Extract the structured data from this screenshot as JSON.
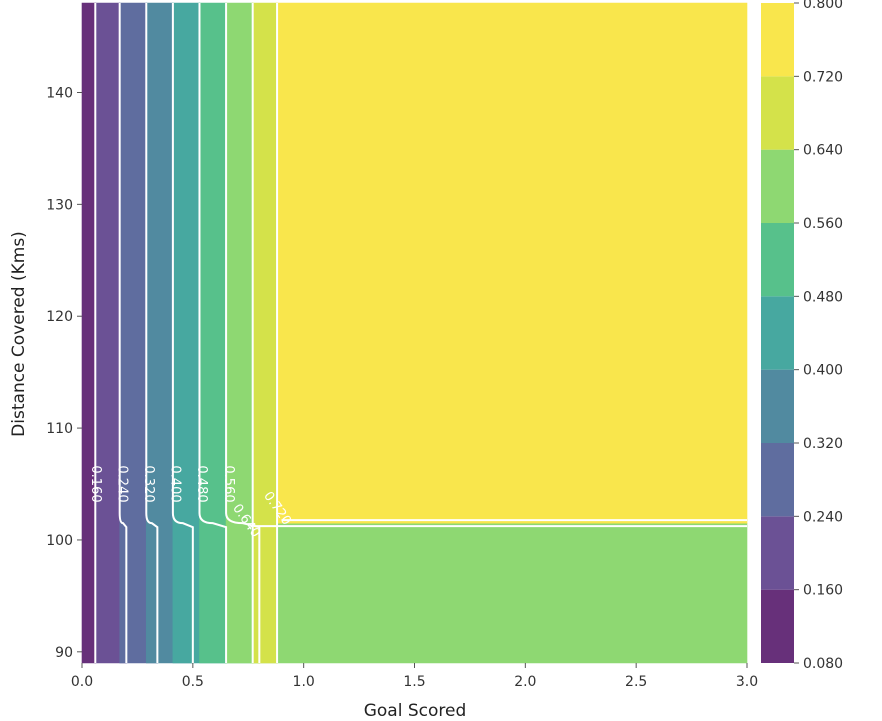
{
  "chart_data": {
    "type": "contour",
    "title": "",
    "xlabel": "Goal Scored",
    "ylabel": "Distance Covered (Kms)",
    "xlim": [
      0.0,
      3.0
    ],
    "ylim": [
      89,
      148
    ],
    "x_ticks": [
      0.0,
      0.5,
      1.0,
      1.5,
      2.0,
      2.5,
      3.0
    ],
    "x_tick_labels": [
      "0.0",
      "0.5",
      "1.0",
      "1.5",
      "2.0",
      "2.5",
      "3.0"
    ],
    "y_ticks": [
      90,
      100,
      110,
      120,
      130,
      140
    ],
    "y_tick_labels": [
      "90",
      "100",
      "110",
      "120",
      "130",
      "140"
    ],
    "colorbar": {
      "levels": [
        0.08,
        0.16,
        0.24,
        0.32,
        0.4,
        0.48,
        0.56,
        0.64,
        0.72,
        0.8
      ],
      "tick_labels": [
        "0.080",
        "0.160",
        "0.240",
        "0.320",
        "0.400",
        "0.480",
        "0.560",
        "0.640",
        "0.720",
        "0.800"
      ],
      "colors": [
        "#67307a",
        "#6b5195",
        "#5f6d9f",
        "#518aa0",
        "#47a8a0",
        "#57c18b",
        "#8ed872",
        "#d4e24a",
        "#f9e64c"
      ]
    },
    "regions": [
      {
        "level_index": 0,
        "x_from": 0.0,
        "x_to_upper": 0.06,
        "x_to_lower": 0.06
      },
      {
        "level_index": 1,
        "x_from": 0.06,
        "x_to_upper": 0.17,
        "x_to_lower": 0.2
      },
      {
        "level_index": 2,
        "x_from": 0.17,
        "x_to_upper": 0.29,
        "x_to_lower": 0.34
      },
      {
        "level_index": 3,
        "x_from": 0.29,
        "x_to_upper": 0.41,
        "x_to_lower": 0.5
      },
      {
        "level_index": 4,
        "x_from": 0.41,
        "x_to_upper": 0.53,
        "x_to_lower": 0.65
      },
      {
        "level_index": 5,
        "x_from": 0.53,
        "x_to_upper": 0.65,
        "x_to_lower": 0.8
      },
      {
        "level_index": 6,
        "x_from": 0.65,
        "x_to_upper": 0.77,
        "x_to_lower": 3.0
      },
      {
        "level_index": 7,
        "x_from": 0.77,
        "x_to_upper": 0.88,
        "x_to_lower": 0.88
      },
      {
        "level_index": 8,
        "x_from": 0.88,
        "x_to_upper": 3.0,
        "x_to_lower": 0.88
      }
    ],
    "boundary_distance": 101.5,
    "contour_lines": [
      {
        "level": 0.16,
        "x_upper": 0.06,
        "x_lower": 0.06
      },
      {
        "level": 0.24,
        "x_upper": 0.17,
        "x_lower": 0.2
      },
      {
        "level": 0.32,
        "x_upper": 0.29,
        "x_lower": 0.34
      },
      {
        "level": 0.4,
        "x_upper": 0.41,
        "x_lower": 0.5
      },
      {
        "level": 0.48,
        "x_upper": 0.53,
        "x_lower": 0.65
      },
      {
        "level": 0.56,
        "x_upper": 0.65,
        "x_lower": 0.8
      },
      {
        "level": 0.64,
        "x_upper": 0.77,
        "x_lower": 0.77
      },
      {
        "level": 0.72,
        "x_upper": 0.88,
        "x_lower": 0.88
      }
    ],
    "contour_labels": [
      {
        "text": "0.160",
        "x": 0.06,
        "y": 105,
        "rotation": 90
      },
      {
        "text": "0.240",
        "x": 0.18,
        "y": 105,
        "rotation": 90
      },
      {
        "text": "0.320",
        "x": 0.3,
        "y": 105,
        "rotation": 90
      },
      {
        "text": "0.400",
        "x": 0.42,
        "y": 105,
        "rotation": 90
      },
      {
        "text": "0.480",
        "x": 0.54,
        "y": 105,
        "rotation": 90
      },
      {
        "text": "0.560",
        "x": 0.66,
        "y": 105,
        "rotation": 90
      },
      {
        "text": "0.640",
        "x": 0.74,
        "y": 101.7,
        "rotation": 55
      },
      {
        "text": "0.720",
        "x": 0.88,
        "y": 102.8,
        "rotation": 55
      }
    ]
  }
}
